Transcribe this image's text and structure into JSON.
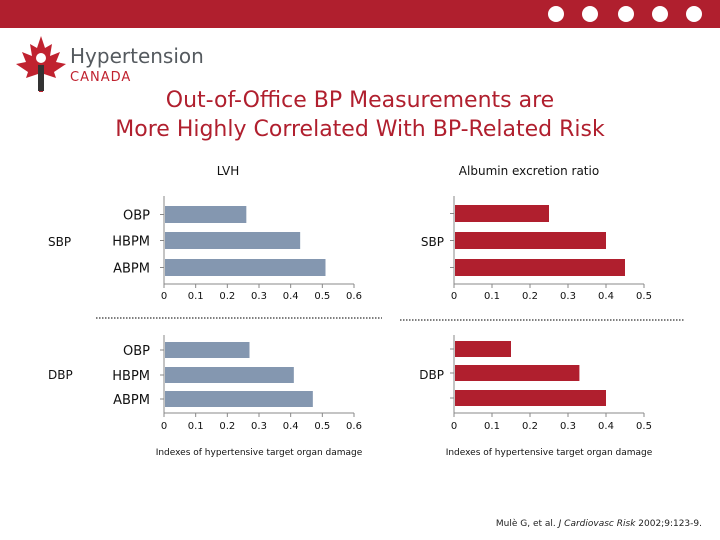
{
  "header": {
    "logo_line1": "Hypertension",
    "logo_line2": "CANADA",
    "nav_icons": [
      "apple-icon",
      "megaphone-icon",
      "microscope-icon",
      "pill-icon",
      "stethoscope-icon"
    ]
  },
  "title": {
    "line1": "Out-of-Office BP Measurements are",
    "line2": "More Highly Correlated With BP-Related Risk"
  },
  "colors": {
    "lvh_bar": "#8497b0",
    "albumin_bar": "#b01f2e",
    "brand": "#b01f2e"
  },
  "chart_data": [
    {
      "type": "bar",
      "orientation": "horizontal",
      "title": "LVH",
      "group_label": "SBP",
      "categories": [
        "OBP",
        "HBPM",
        "ABPM"
      ],
      "values": [
        0.26,
        0.43,
        0.51
      ],
      "xlim": [
        0,
        0.6
      ],
      "xticks": [
        "0",
        "0.1",
        "0.2",
        "0.3",
        "0.4",
        "0.5",
        "0.6"
      ],
      "xlabel": ""
    },
    {
      "type": "bar",
      "orientation": "horizontal",
      "title": "Albumin excretion ratio",
      "group_label": "SBP",
      "categories": [
        "OBP",
        "HBPM",
        "ABPM"
      ],
      "values": [
        0.25,
        0.4,
        0.45
      ],
      "xlim": [
        0,
        0.5
      ],
      "xticks": [
        "0",
        "0.1",
        "0.2",
        "0.3",
        "0.4",
        "0.5"
      ],
      "xlabel": ""
    },
    {
      "type": "bar",
      "orientation": "horizontal",
      "title": "",
      "group_label": "DBP",
      "categories": [
        "OBP",
        "HBPM",
        "ABPM"
      ],
      "values": [
        0.27,
        0.41,
        0.47
      ],
      "xlim": [
        0,
        0.6
      ],
      "xticks": [
        "0",
        "0.1",
        "0.2",
        "0.3",
        "0.4",
        "0.5",
        "0.6"
      ],
      "xlabel": "Indexes of hypertensive target organ damage"
    },
    {
      "type": "bar",
      "orientation": "horizontal",
      "title": "",
      "group_label": "DBP",
      "categories": [
        "OBP",
        "HBPM",
        "ABPM"
      ],
      "values": [
        0.15,
        0.33,
        0.4
      ],
      "xlim": [
        0,
        0.5
      ],
      "xticks": [
        "0",
        "0.1",
        "0.2",
        "0.3",
        "0.4",
        "0.5"
      ],
      "xlabel": "Indexes of hypertensive target organ damage"
    }
  ],
  "citation": {
    "authors": "Mulè G, et al.",
    "journal": "J Cardiovasc Risk",
    "ref": "2002;9:123-9."
  }
}
